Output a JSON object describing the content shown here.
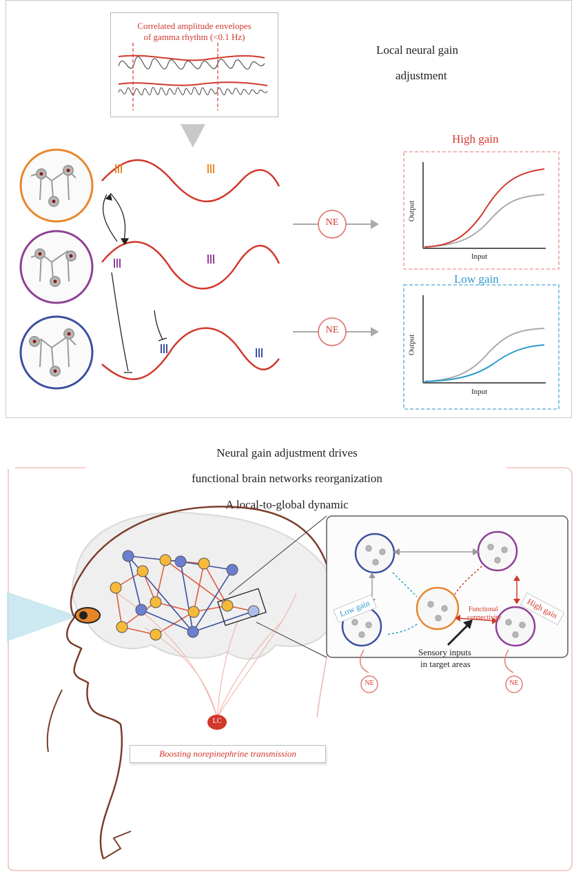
{
  "colors": {
    "accent_red": "#d2382c",
    "accent_blue": "#2b9bc9",
    "gray": "#a9a9a9",
    "orange": "#e8852b",
    "purple": "#8e3f96",
    "navy": "#3b4fa0",
    "brown": "#7a3d2a"
  },
  "panel_a": {
    "envelope_box_line1": "Correlated amplitude envelopes",
    "envelope_box_line2": "of gamma rhythm (<0.1 Hz)",
    "title_line1": "Local neural gain",
    "title_line2": "adjustment",
    "high_gain_label": "High gain",
    "low_gain_label": "Low gain",
    "ne_label_1": "NE",
    "ne_label_2": "NE",
    "plot_high": {
      "ylabel": "Output",
      "xlabel": "Input"
    },
    "plot_low": {
      "ylabel": "Output",
      "xlabel": "Input"
    }
  },
  "panel_b": {
    "title_line1": "Neural gain adjustment drives",
    "title_line2": "functional brain networks reorganization",
    "title_line3": "A local-to-global dynamic",
    "low_gain_tag": "Low gain",
    "high_gain_tag": "High gain",
    "functional_line1": "Functional",
    "functional_line2": "connectivity",
    "sensory_line1": "Sensory inputs",
    "sensory_line2": "in target areas",
    "ne_left": "NE",
    "ne_right": "NE",
    "lc_label": "LC",
    "caption": "Boosting norepinephrine transmission"
  }
}
